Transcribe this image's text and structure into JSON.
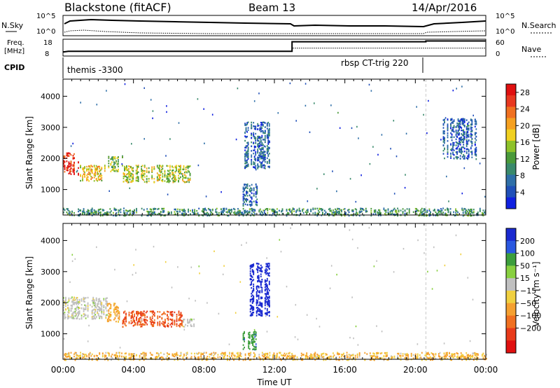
{
  "header": {
    "station": "Blackstone (fitACF)",
    "beam": "Beam 13",
    "date": "14/Apr/2016"
  },
  "status_panels": {
    "nsky_label": "N.Sky",
    "nsearch_label": "N.Search",
    "noise_ticks": [
      "10^5",
      "10^0"
    ],
    "freq_label_line1": "Freq.",
    "freq_label_line2": "[MHz]",
    "freq_ticks": [
      "18",
      "8"
    ],
    "nave_label": "Nave",
    "nave_ticks": [
      "60",
      "0"
    ],
    "cpid_label": "CPID",
    "cpid_segments": [
      {
        "name": "themis -3300",
        "start_hour": 0.0,
        "end_hour": 13.0
      },
      {
        "name": "rbsp CT-trig 220",
        "start_hour": 13.0,
        "end_hour": 20.6
      }
    ],
    "freq_series": [
      {
        "hour": 0.0,
        "value": 10.2
      },
      {
        "hour": 0.3,
        "value": 10.6
      },
      {
        "hour": 13.0,
        "value": 10.6
      },
      {
        "hour": 13.0,
        "value": 16.8
      },
      {
        "hour": 20.6,
        "value": 16.8
      },
      {
        "hour": 20.6,
        "value": 17.3
      },
      {
        "hour": 24.0,
        "value": 17.3
      }
    ],
    "nave_series": [
      {
        "hour": 0.0,
        "value": 15
      },
      {
        "hour": 13.0,
        "value": 15
      },
      {
        "hour": 13.0,
        "value": 28
      },
      {
        "hour": 24.0,
        "value": 28
      }
    ]
  },
  "chart_data": [
    {
      "type": "heatmap",
      "name": "power",
      "ylabel": "Slant Range [km]",
      "xlabel": "Time UT",
      "x_ticks": [
        "00:00",
        "04:00",
        "08:00",
        "12:00",
        "16:00",
        "20:00",
        "00:00"
      ],
      "y_ticks": [
        "1000",
        "2000",
        "3000",
        "4000"
      ],
      "x_range_hours": [
        0,
        24
      ],
      "y_range_km": [
        180,
        4550
      ],
      "colorbar": {
        "label": "Power [dB]",
        "ticks": [
          "4",
          "8",
          "12",
          "16",
          "20",
          "24",
          "28"
        ],
        "range": [
          0,
          30
        ],
        "colors": [
          "#1020e0",
          "#2050b8",
          "#2f6fa8",
          "#3a8a6c",
          "#4a9a3a",
          "#8ec22a",
          "#f0d020",
          "#f5a020",
          "#f07020",
          "#e83820",
          "#e01010"
        ]
      },
      "features": [
        {
          "start_hour": 0.0,
          "end_hour": 0.9,
          "min_km": 1500,
          "max_km": 2200,
          "level": 27
        },
        {
          "start_hour": 0.9,
          "end_hour": 2.5,
          "min_km": 1300,
          "max_km": 1800,
          "level": 18
        },
        {
          "start_hour": 2.5,
          "end_hour": 3.4,
          "min_km": 1600,
          "max_km": 2100,
          "level": 14
        },
        {
          "start_hour": 3.4,
          "end_hour": 7.2,
          "min_km": 1250,
          "max_km": 1800,
          "level": 16
        },
        {
          "start_hour": 10.3,
          "end_hour": 11.8,
          "min_km": 1700,
          "max_km": 3200,
          "level": 6
        },
        {
          "start_hour": 10.2,
          "end_hour": 11.0,
          "min_km": 500,
          "max_km": 1200,
          "level": 6
        },
        {
          "start_hour": 21.5,
          "end_hour": 23.5,
          "min_km": 2000,
          "max_km": 3300,
          "level": 6
        },
        {
          "start_hour": 0.0,
          "end_hour": 24.0,
          "min_km": 180,
          "max_km": 420,
          "level": 10
        }
      ]
    },
    {
      "type": "heatmap",
      "name": "velocity",
      "ylabel": "Slant Range [km]",
      "xlabel": "Time UT",
      "x_ticks": [
        "00:00",
        "04:00",
        "08:00",
        "12:00",
        "16:00",
        "20:00",
        "00:00"
      ],
      "y_ticks": [
        "1000",
        "2000",
        "3000",
        "4000"
      ],
      "x_range_hours": [
        0,
        24
      ],
      "y_range_km": [
        180,
        4550
      ],
      "colorbar": {
        "label": "Velocity [m s⁻¹]",
        "ticks": [
          "200",
          "100",
          "50",
          "15",
          "−15",
          "−50",
          "−100",
          "−200"
        ],
        "colors": [
          "#1a2ad0",
          "#2a58e0",
          "#3c9e3c",
          "#88d040",
          "#c0c0c0",
          "#f0d040",
          "#f5a030",
          "#f07020",
          "#e83a1a",
          "#e01010"
        ]
      },
      "features": [
        {
          "start_hour": 0.0,
          "end_hour": 2.5,
          "min_km": 1500,
          "max_km": 2200,
          "velocity": 0
        },
        {
          "start_hour": 2.5,
          "end_hour": 3.2,
          "min_km": 1400,
          "max_km": 2000,
          "velocity": -40
        },
        {
          "start_hour": 3.3,
          "end_hour": 6.8,
          "min_km": 1250,
          "max_km": 1750,
          "velocity": -150
        },
        {
          "start_hour": 6.8,
          "end_hour": 7.4,
          "min_km": 1250,
          "max_km": 1500,
          "velocity": 0
        },
        {
          "start_hour": 10.6,
          "end_hour": 11.7,
          "min_km": 1600,
          "max_km": 3300,
          "velocity": 200
        },
        {
          "start_hour": 10.2,
          "end_hour": 11.0,
          "min_km": 500,
          "max_km": 1100,
          "velocity": 60
        },
        {
          "start_hour": 0.0,
          "end_hour": 24.0,
          "min_km": 180,
          "max_km": 420,
          "velocity": -30
        }
      ]
    }
  ]
}
